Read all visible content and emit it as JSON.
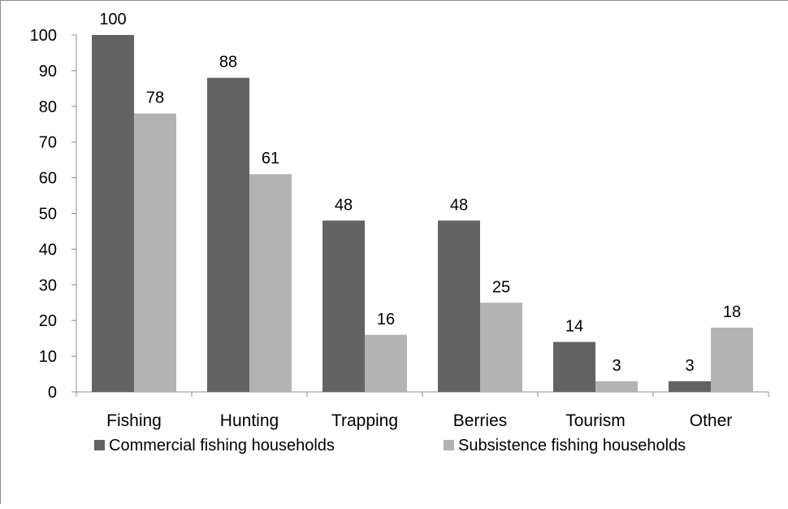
{
  "chart_data": {
    "type": "bar",
    "title": "",
    "xlabel": "",
    "ylabel": "",
    "categories": [
      "Fishing",
      "Hunting",
      "Trapping",
      "Berries",
      "Tourism",
      "Other"
    ],
    "series": [
      {
        "name": "Commercial fishing households",
        "color": "#636363",
        "values": [
          100,
          88,
          48,
          48,
          14,
          3
        ]
      },
      {
        "name": "Subsistence fishing households",
        "color": "#b3b3b3",
        "values": [
          78,
          61,
          16,
          25,
          3,
          18
        ]
      }
    ],
    "ylim": [
      0,
      100
    ],
    "yticks": [
      0,
      10,
      20,
      30,
      40,
      50,
      60,
      70,
      80,
      90,
      100
    ],
    "grid": false,
    "data_labels": true,
    "legend": "bottom"
  }
}
